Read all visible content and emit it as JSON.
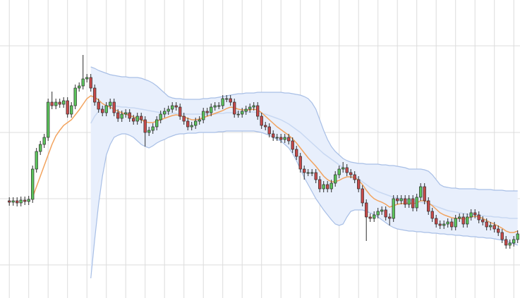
{
  "chart_data": {
    "type": "candlestick",
    "categories": [
      null,
      null,
      null,
      null,
      null,
      null,
      null,
      null,
      null,
      null,
      null,
      null,
      null,
      null,
      null,
      null,
      null,
      null,
      null,
      null,
      null,
      null,
      null,
      null,
      null,
      null,
      null,
      null,
      null,
      null,
      null,
      null,
      null,
      null,
      null,
      null,
      null,
      null,
      null,
      null,
      null,
      null,
      null,
      null,
      null,
      null,
      null,
      null,
      null,
      null,
      null,
      null,
      null,
      null,
      null,
      null,
      null,
      null,
      null,
      null,
      null,
      null,
      null,
      null,
      null,
      null,
      null,
      null,
      null,
      null,
      null,
      null,
      null,
      null,
      null,
      null,
      null,
      null,
      null,
      null,
      null,
      null,
      null,
      null,
      null,
      null,
      null,
      null,
      null,
      null,
      null,
      null,
      null,
      null,
      null,
      null,
      null,
      null,
      null,
      null,
      null,
      null,
      null,
      null,
      null,
      null,
      null,
      null,
      null,
      null,
      null,
      null,
      null,
      null,
      null,
      null,
      null,
      null,
      null,
      null,
      null,
      null,
      null,
      null,
      null,
      null,
      null,
      null,
      null,
      null,
      null,
      null
    ],
    "xlim": [
      -2.4,
      131.6
    ],
    "xticks": [
      0,
      5,
      10,
      15,
      20,
      25,
      30,
      35,
      40,
      45,
      50,
      55,
      60,
      65,
      70,
      75,
      80,
      85,
      90,
      95,
      100,
      105,
      110,
      115,
      120,
      125,
      130
    ],
    "ylim": [
      0,
      42.3
    ],
    "yticks": [
      4.7,
      14.1,
      23.5,
      35.8
    ],
    "grid": true,
    "up_color": "#5cc65c",
    "down_color": "#c94a4a",
    "edge_color": "#2b2b2b",
    "open": [
      13.8,
      13.6,
      13.8,
      13.5,
      13.9,
      13.7,
      14.0,
      18.3,
      20.8,
      21.8,
      22.8,
      27.8,
      27.3,
      27.8,
      27.5,
      28.0,
      26.1,
      27.3,
      29.8,
      30.1,
      31.1,
      31.3,
      29.8,
      27.8,
      26.8,
      26.3,
      27.3,
      27.8,
      26.3,
      25.5,
      26.1,
      26.3,
      25.5,
      25.1,
      25.8,
      25.3,
      23.5,
      23.8,
      24.3,
      25.3,
      26.1,
      26.5,
      26.8,
      27.3,
      27.1,
      25.8,
      25.1,
      24.3,
      24.5,
      25.1,
      25.3,
      26.5,
      26.3,
      27.1,
      27.3,
      27.3,
      28.3,
      28.3,
      27.8,
      26.1,
      26.1,
      26.5,
      26.8,
      27.1,
      27.3,
      25.8,
      24.5,
      24.3,
      23.3,
      22.8,
      22.8,
      22.5,
      22.8,
      22.3,
      21.1,
      20.1,
      18.3,
      17.8,
      17.8,
      17.8,
      16.8,
      15.5,
      16.1,
      15.5,
      16.3,
      17.5,
      18.3,
      18.5,
      17.8,
      17.5,
      16.8,
      15.5,
      13.5,
      11.5,
      11.3,
      11.8,
      12.3,
      12.5,
      11.5,
      11.3,
      14.1,
      13.8,
      14.1,
      13.3,
      14.1,
      12.8,
      14.3,
      15.8,
      13.8,
      12.3,
      11.3,
      10.5,
      10.3,
      10.5,
      10.8,
      10.1,
      11.3,
      11.5,
      10.5,
      11.5,
      12.1,
      11.8,
      11.1,
      10.8,
      10.1,
      10.3,
      9.8,
      9.3,
      8.3,
      7.5,
      7.8,
      8.3
    ],
    "high": [
      14.3,
      14.3,
      14.3,
      14.4,
      14.4,
      14.5,
      18.8,
      21.3,
      22.3,
      23.3,
      28.3,
      29.3,
      28.3,
      28.3,
      28.5,
      28.5,
      27.8,
      30.3,
      30.6,
      34.5,
      31.8,
      31.8,
      30.3,
      28.3,
      27.3,
      27.8,
      28.3,
      28.3,
      26.8,
      26.6,
      26.8,
      26.8,
      26.0,
      26.3,
      26.3,
      25.8,
      24.3,
      24.8,
      25.8,
      26.6,
      27.0,
      27.3,
      27.8,
      27.8,
      27.6,
      26.3,
      25.6,
      25.0,
      25.6,
      25.8,
      27.0,
      27.0,
      27.6,
      27.8,
      27.8,
      28.8,
      28.8,
      28.8,
      28.3,
      26.6,
      27.0,
      27.3,
      27.6,
      27.8,
      27.8,
      26.3,
      25.0,
      24.8,
      23.8,
      23.3,
      23.3,
      23.3,
      23.3,
      22.8,
      21.6,
      20.6,
      18.8,
      18.3,
      18.3,
      18.3,
      17.3,
      16.6,
      16.6,
      16.8,
      18.0,
      18.8,
      19.3,
      19.0,
      18.3,
      18.0,
      17.3,
      16.0,
      14.0,
      12.0,
      12.3,
      12.8,
      13.0,
      13.0,
      12.0,
      14.6,
      14.6,
      14.6,
      14.6,
      14.6,
      14.6,
      14.8,
      16.3,
      16.3,
      14.3,
      12.8,
      11.8,
      11.0,
      11.0,
      11.3,
      11.3,
      11.8,
      12.0,
      12.0,
      12.0,
      12.6,
      12.6,
      12.3,
      11.6,
      11.3,
      10.8,
      10.8,
      10.3,
      9.8,
      8.8,
      8.3,
      8.8,
      9.6
    ],
    "low": [
      13.1,
      13.1,
      13.0,
      13.0,
      13.2,
      13.2,
      13.5,
      17.8,
      20.3,
      21.3,
      22.3,
      26.8,
      26.8,
      27.0,
      27.0,
      25.6,
      25.6,
      26.8,
      29.3,
      29.6,
      30.6,
      29.3,
      27.3,
      26.3,
      25.8,
      25.8,
      26.8,
      25.8,
      25.0,
      25.0,
      25.6,
      25.0,
      24.6,
      24.6,
      24.8,
      21.5,
      23.0,
      23.3,
      23.8,
      24.8,
      25.6,
      26.0,
      26.3,
      26.6,
      25.3,
      24.6,
      23.8,
      23.8,
      24.0,
      24.6,
      24.8,
      25.8,
      25.8,
      26.6,
      26.8,
      26.8,
      27.8,
      27.3,
      25.6,
      25.6,
      25.6,
      26.0,
      26.3,
      26.6,
      25.3,
      24.0,
      23.8,
      22.8,
      22.3,
      22.3,
      22.0,
      22.0,
      21.8,
      20.6,
      19.6,
      17.8,
      16.8,
      17.3,
      17.3,
      16.3,
      15.0,
      15.0,
      15.0,
      15.0,
      15.8,
      17.0,
      17.8,
      17.3,
      17.0,
      16.3,
      15.0,
      13.0,
      8.1,
      10.8,
      10.8,
      11.3,
      11.8,
      11.0,
      10.3,
      10.8,
      13.3,
      13.3,
      12.8,
      12.8,
      12.3,
      12.3,
      13.8,
      13.3,
      11.8,
      10.8,
      10.0,
      9.8,
      9.8,
      10.0,
      9.6,
      9.6,
      10.8,
      10.0,
      10.0,
      11.0,
      11.3,
      10.6,
      10.3,
      9.6,
      9.6,
      9.3,
      8.8,
      7.8,
      7.0,
      7.0,
      7.3,
      7.8
    ],
    "close": [
      13.6,
      13.8,
      13.5,
      13.9,
      13.7,
      14.0,
      18.3,
      20.8,
      21.8,
      22.8,
      27.8,
      27.3,
      27.8,
      27.5,
      28.0,
      26.1,
      27.3,
      29.8,
      30.1,
      31.1,
      31.3,
      29.8,
      27.8,
      26.8,
      26.3,
      27.3,
      27.8,
      26.3,
      25.5,
      26.1,
      26.3,
      25.5,
      25.1,
      25.8,
      25.3,
      23.5,
      23.8,
      24.3,
      25.3,
      26.1,
      26.5,
      26.8,
      27.3,
      27.1,
      25.8,
      25.1,
      24.3,
      24.5,
      25.1,
      25.3,
      26.5,
      26.3,
      27.1,
      27.3,
      27.3,
      28.3,
      28.3,
      27.8,
      26.1,
      26.1,
      26.5,
      26.8,
      27.1,
      27.3,
      25.8,
      24.5,
      24.3,
      23.3,
      22.8,
      22.8,
      22.5,
      22.8,
      22.3,
      21.1,
      20.1,
      18.3,
      17.8,
      17.8,
      17.8,
      16.8,
      15.5,
      16.1,
      15.5,
      16.3,
      17.5,
      18.3,
      18.5,
      17.8,
      17.5,
      16.8,
      15.5,
      13.5,
      11.5,
      11.3,
      11.8,
      12.3,
      12.5,
      11.5,
      11.3,
      14.1,
      13.8,
      14.1,
      13.3,
      14.1,
      12.8,
      14.3,
      15.8,
      13.8,
      12.3,
      11.3,
      10.5,
      10.3,
      10.5,
      10.8,
      10.1,
      11.3,
      11.5,
      10.5,
      11.5,
      12.1,
      11.8,
      11.1,
      10.8,
      10.1,
      10.3,
      9.8,
      9.3,
      8.3,
      7.5,
      7.8,
      8.3,
      9.1
    ],
    "bands": {
      "fill": "#e8effc",
      "edge_color": "#a8bfe6",
      "middle_color": "#c8d8f2",
      "upper": [
        null,
        null,
        null,
        null,
        null,
        null,
        null,
        null,
        null,
        null,
        null,
        null,
        null,
        null,
        null,
        null,
        null,
        null,
        null,
        null,
        null,
        32.8,
        32.6,
        32.3,
        32.1,
        31.9,
        31.7,
        31.6,
        31.5,
        31.4,
        31.4,
        31.3,
        31.3,
        31.3,
        31.2,
        31.0,
        30.8,
        30.5,
        30.1,
        29.6,
        29.1,
        28.6,
        28.4,
        28.3,
        28.3,
        28.2,
        28.2,
        28.2,
        28.2,
        28.2,
        28.3,
        28.3,
        28.4,
        28.4,
        28.5,
        28.6,
        28.7,
        28.8,
        28.9,
        29.0,
        29.0,
        29.1,
        29.1,
        29.1,
        29.2,
        29.2,
        29.2,
        29.2,
        29.2,
        29.2,
        29.2,
        29.1,
        29.1,
        29.0,
        28.9,
        28.8,
        28.6,
        28.3,
        27.7,
        26.8,
        25.3,
        23.8,
        22.5,
        21.5,
        20.8,
        20.3,
        19.8,
        19.5,
        19.3,
        19.2,
        19.1,
        19.1,
        19.0,
        19.0,
        19.0,
        19.0,
        18.9,
        18.9,
        18.8,
        18.8,
        18.7,
        18.6,
        18.5,
        18.3,
        18.3,
        18.3,
        18.3,
        18.2,
        18.0,
        17.5,
        16.8,
        16.1,
        15.8,
        15.7,
        15.6,
        15.6,
        15.5,
        15.5,
        15.5,
        15.5,
        15.5,
        15.4,
        15.4,
        15.4,
        15.4,
        15.3,
        15.3,
        15.3,
        15.2,
        15.2,
        15.2,
        15.2
      ],
      "middle": [
        null,
        null,
        null,
        null,
        null,
        null,
        null,
        null,
        null,
        null,
        null,
        null,
        null,
        null,
        null,
        null,
        null,
        null,
        null,
        null,
        null,
        24.8,
        25.8,
        26.5,
        27.0,
        27.3,
        27.3,
        27.3,
        27.2,
        27.1,
        27.1,
        27.0,
        27.0,
        26.9,
        26.8,
        26.7,
        26.6,
        26.5,
        26.4,
        26.3,
        26.3,
        26.2,
        26.2,
        26.2,
        26.1,
        26.1,
        26.1,
        26.1,
        26.1,
        26.1,
        26.1,
        26.1,
        26.1,
        26.1,
        26.2,
        26.2,
        26.3,
        26.3,
        26.3,
        26.4,
        26.4,
        26.4,
        26.4,
        26.4,
        26.3,
        26.2,
        26.1,
        25.9,
        25.7,
        25.5,
        25.3,
        25.0,
        24.7,
        24.3,
        23.9,
        23.5,
        23.0,
        22.5,
        22.0,
        21.5,
        21.0,
        20.5,
        20.1,
        19.7,
        19.3,
        18.9,
        18.5,
        18.1,
        17.7,
        17.3,
        16.9,
        16.5,
        16.1,
        15.7,
        15.4,
        15.1,
        14.9,
        14.7,
        14.5,
        14.3,
        14.2,
        14.1,
        14.0,
        13.9,
        13.8,
        13.7,
        13.6,
        13.5,
        13.4,
        13.2,
        13.0,
        12.8,
        12.6,
        12.4,
        12.3,
        12.2,
        12.1,
        12.0,
        11.9,
        11.8,
        11.8,
        11.7,
        11.7,
        11.6,
        11.6,
        11.5,
        11.5,
        11.4,
        11.4,
        11.3,
        11.3,
        11.3
      ],
      "lower": [
        null,
        null,
        null,
        null,
        null,
        null,
        null,
        null,
        null,
        null,
        null,
        null,
        null,
        null,
        null,
        null,
        null,
        null,
        null,
        null,
        null,
        2.8,
        8.3,
        13.3,
        17.3,
        20.3,
        21.8,
        22.8,
        23.1,
        23.3,
        23.3,
        23.1,
        22.8,
        22.3,
        21.8,
        21.5,
        21.3,
        21.6,
        22.0,
        22.3,
        22.5,
        22.8,
        23.0,
        23.2,
        23.3,
        23.3,
        23.4,
        23.4,
        23.4,
        23.5,
        23.5,
        23.5,
        23.5,
        23.5,
        23.6,
        23.6,
        23.7,
        23.7,
        23.7,
        23.7,
        23.7,
        23.7,
        23.7,
        23.7,
        23.6,
        23.5,
        23.3,
        23.1,
        22.8,
        22.5,
        22.3,
        21.8,
        21.3,
        20.5,
        19.5,
        18.3,
        17.1,
        16.1,
        15.1,
        14.1,
        13.3,
        12.5,
        11.8,
        11.1,
        10.5,
        10.3,
        10.5,
        11.5,
        12.3,
        12.5,
        12.5,
        12.5,
        12.3,
        12.1,
        11.8,
        11.5,
        11.1,
        10.7,
        10.3,
        10.0,
        9.8,
        9.7,
        9.6,
        9.5,
        9.5,
        9.4,
        9.4,
        9.3,
        9.3,
        9.2,
        9.2,
        9.1,
        9.1,
        9.0,
        9.0,
        8.9,
        8.9,
        8.8,
        8.8,
        8.7,
        8.7,
        8.6,
        8.6,
        8.5,
        8.5,
        8.4,
        8.3,
        8.2,
        8.1,
        7.9,
        7.7,
        7.5
      ]
    },
    "ema": {
      "color": "#f2a35e",
      "values": [
        null,
        null,
        null,
        null,
        null,
        null,
        14.3,
        15.8,
        17.3,
        18.8,
        20.3,
        21.8,
        23.0,
        23.8,
        24.5,
        24.9,
        25.3,
        26.0,
        26.7,
        27.5,
        28.3,
        28.7,
        28.5,
        28.1,
        27.6,
        27.3,
        27.1,
        26.8,
        26.5,
        26.3,
        26.1,
        25.9,
        25.7,
        25.5,
        25.3,
        25.0,
        24.9,
        24.9,
        25.1,
        25.3,
        25.5,
        25.7,
        25.9,
        26.0,
        25.9,
        25.7,
        25.5,
        25.3,
        25.3,
        25.4,
        25.6,
        25.8,
        26.0,
        26.2,
        26.4,
        26.6,
        26.9,
        27.1,
        27.0,
        26.8,
        26.7,
        26.7,
        26.7,
        26.8,
        26.7,
        26.3,
        25.8,
        25.3,
        24.8,
        24.3,
        23.9,
        23.5,
        23.1,
        22.6,
        22.0,
        21.3,
        20.6,
        19.9,
        19.3,
        18.7,
        18.0,
        17.3,
        16.8,
        16.5,
        16.5,
        16.7,
        17.0,
        17.2,
        17.2,
        17.1,
        16.7,
        16.1,
        15.3,
        14.6,
        14.1,
        13.8,
        13.6,
        13.3,
        12.9,
        13.1,
        13.3,
        13.4,
        13.4,
        13.5,
        13.4,
        13.5,
        13.8,
        13.8,
        13.5,
        13.1,
        12.6,
        12.1,
        11.8,
        11.6,
        11.4,
        11.3,
        11.3,
        11.2,
        11.3,
        11.5,
        11.6,
        11.5,
        11.3,
        11.0,
        10.7,
        10.5,
        10.2,
        9.9,
        9.5,
        9.3,
        9.3,
        9.5
      ]
    }
  }
}
